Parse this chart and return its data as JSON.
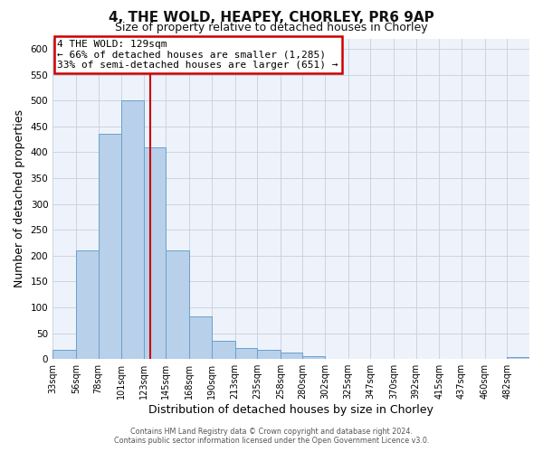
{
  "title": "4, THE WOLD, HEAPEY, CHORLEY, PR6 9AP",
  "subtitle": "Size of property relative to detached houses in Chorley",
  "xlabel": "Distribution of detached houses by size in Chorley",
  "ylabel": "Number of detached properties",
  "footer_line1": "Contains HM Land Registry data © Crown copyright and database right 2024.",
  "footer_line2": "Contains public sector information licensed under the Open Government Licence v3.0.",
  "bin_labels": [
    "33sqm",
    "56sqm",
    "78sqm",
    "101sqm",
    "123sqm",
    "145sqm",
    "168sqm",
    "190sqm",
    "213sqm",
    "235sqm",
    "258sqm",
    "280sqm",
    "302sqm",
    "325sqm",
    "347sqm",
    "370sqm",
    "392sqm",
    "415sqm",
    "437sqm",
    "460sqm",
    "482sqm"
  ],
  "bar_heights": [
    18,
    210,
    435,
    500,
    410,
    210,
    83,
    35,
    22,
    18,
    12,
    5,
    0,
    0,
    0,
    0,
    0,
    0,
    0,
    0,
    3
  ],
  "bar_color": "#b8d0ea",
  "bar_edge_color": "#6aa0cc",
  "bin_edges": [
    33,
    56,
    78,
    101,
    123,
    145,
    168,
    190,
    213,
    235,
    258,
    280,
    302,
    325,
    347,
    370,
    392,
    415,
    437,
    460,
    482
  ],
  "annotation_title": "4 THE WOLD: 129sqm",
  "annotation_line1": "← 66% of detached houses are smaller (1,285)",
  "annotation_line2": "33% of semi-detached houses are larger (651) →",
  "vline_color": "#cc0000",
  "vline_x": 129,
  "ylim": [
    0,
    620
  ],
  "yticks": [
    0,
    50,
    100,
    150,
    200,
    250,
    300,
    350,
    400,
    450,
    500,
    550,
    600
  ],
  "annotation_box_color": "#ffffff",
  "annotation_box_edge": "#cc0000",
  "bg_color": "#eef2fa",
  "fig_bg_color": "#ffffff",
  "title_fontsize": 11,
  "subtitle_fontsize": 9
}
